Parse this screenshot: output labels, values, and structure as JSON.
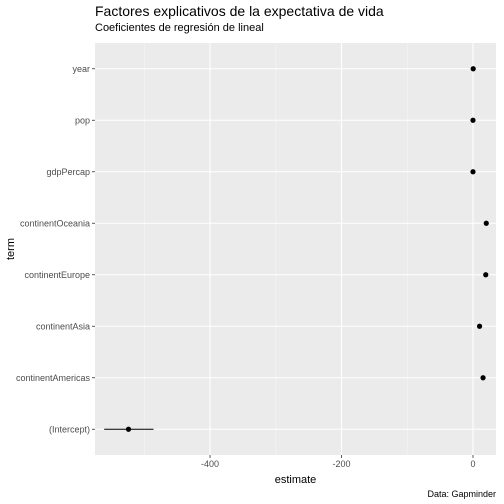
{
  "chart_data": {
    "type": "scatter",
    "subtype": "coefficient-plot",
    "title": "Factores explicativos de la expectativa de vida",
    "subtitle": "Coeficientes de regresión de lineal",
    "xlabel": "estimate",
    "ylabel": "term",
    "caption": "Data: Gapminder",
    "xlim": [
      -575,
      35
    ],
    "xticks": [
      -400,
      -200,
      0
    ],
    "xtick_labels": [
      "-400",
      "-200",
      "0"
    ],
    "categories": [
      "year",
      "pop",
      "gdpPercap",
      "continentOceania",
      "continentEurope",
      "continentAsia",
      "continentAmericas",
      "(Intercept)"
    ],
    "points": [
      {
        "term": "year",
        "estimate": 0.33,
        "low": 0.28,
        "high": 0.38
      },
      {
        "term": "pop",
        "estimate": 0.0,
        "low": 0.0,
        "high": 0.0
      },
      {
        "term": "gdpPercap",
        "estimate": 0.0003,
        "low": 0.0003,
        "high": 0.0003
      },
      {
        "term": "continentOceania",
        "estimate": 20.2,
        "low": 17.8,
        "high": 22.6
      },
      {
        "term": "continentEurope",
        "estimate": 19.4,
        "low": 18.6,
        "high": 20.2
      },
      {
        "term": "continentAsia",
        "estimate": 10.0,
        "low": 9.2,
        "high": 10.8
      },
      {
        "term": "continentAmericas",
        "estimate": 15.3,
        "low": 14.4,
        "high": 16.2
      },
      {
        "term": "(Intercept)",
        "estimate": -524,
        "low": -561,
        "high": -486
      }
    ],
    "grid": true,
    "background": "#ebebeb",
    "point_color": "#000000"
  }
}
